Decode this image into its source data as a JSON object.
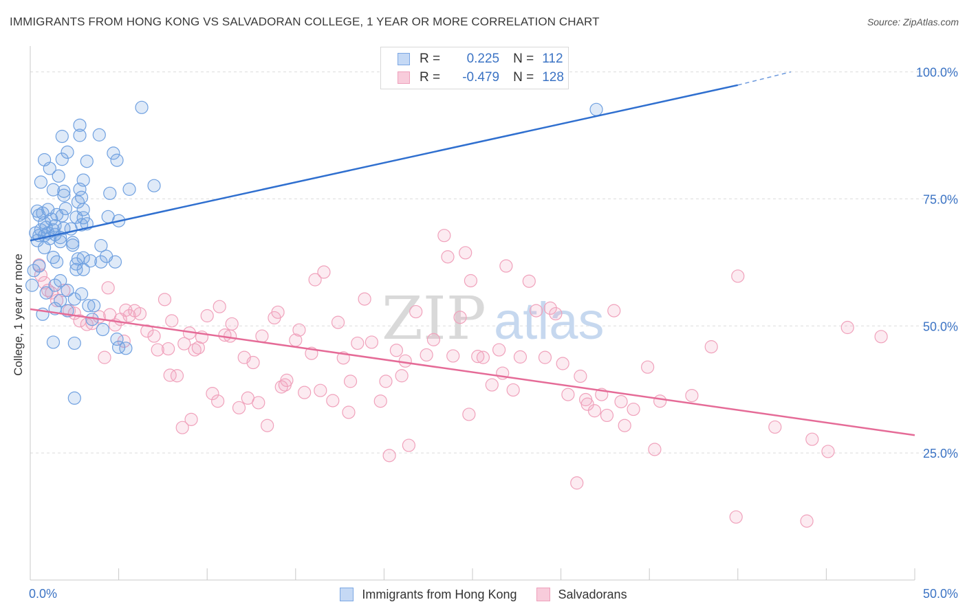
{
  "title": "IMMIGRANTS FROM HONG KONG VS SALVADORAN COLLEGE, 1 YEAR OR MORE CORRELATION CHART",
  "source": "Source: ZipAtlas.com",
  "watermark": {
    "zip": "ZIP",
    "atlas": "atlas"
  },
  "legend": {
    "r_label": "R =",
    "n_label": "N =",
    "rows": [
      {
        "r": "0.225",
        "n": "112"
      },
      {
        "r": "-0.479",
        "n": "128"
      }
    ]
  },
  "chart_data": {
    "type": "scatter",
    "title": "IMMIGRANTS FROM HONG KONG VS SALVADORAN COLLEGE, 1 YEAR OR MORE CORRELATION CHART",
    "xlabel": "",
    "ylabel": "College, 1 year or more",
    "xlim": [
      0,
      50
    ],
    "ylim": [
      0,
      104
    ],
    "x_tick_labels": [
      {
        "value": 0,
        "label": "0.0%"
      },
      {
        "value": 50,
        "label": "50.0%"
      }
    ],
    "x_minor_ticks": [
      0,
      5,
      10,
      15,
      20,
      25,
      30,
      35,
      40,
      45,
      50
    ],
    "y_tick_labels": [
      {
        "value": 25,
        "label": "25.0%"
      },
      {
        "value": 50,
        "label": "50.0%"
      },
      {
        "value": 75,
        "label": "75.0%"
      },
      {
        "value": 100,
        "label": "100.0%"
      }
    ],
    "grid": true,
    "legend_position": "top-center",
    "colors": {
      "blue": "#6fa0e0",
      "blue_line": "#2f6fcf",
      "pink": "#f2a3bd",
      "pink_line": "#e56b97"
    },
    "series": [
      {
        "name": "Immigrants from Hong Kong",
        "color": "blue",
        "r": 0.225,
        "n": 112,
        "trend": {
          "x0": 0,
          "y0": 66.8,
          "x1": 40,
          "y1": 97.4,
          "dash_x1": 43,
          "dash_y1": 100.0
        },
        "points": [
          [
            6.3,
            93.0
          ],
          [
            32.0,
            92.6
          ],
          [
            2.8,
            89.5
          ],
          [
            2.8,
            87.5
          ],
          [
            1.8,
            87.3
          ],
          [
            3.9,
            87.6
          ],
          [
            4.7,
            84.0
          ],
          [
            2.1,
            84.2
          ],
          [
            1.8,
            82.8
          ],
          [
            0.8,
            82.7
          ],
          [
            3.2,
            82.4
          ],
          [
            4.9,
            82.6
          ],
          [
            1.1,
            81.0
          ],
          [
            1.6,
            79.5
          ],
          [
            0.6,
            78.3
          ],
          [
            3.0,
            78.7
          ],
          [
            7.0,
            77.6
          ],
          [
            2.8,
            76.9
          ],
          [
            1.3,
            76.8
          ],
          [
            1.9,
            76.5
          ],
          [
            5.6,
            76.9
          ],
          [
            4.5,
            76.1
          ],
          [
            1.9,
            75.7
          ],
          [
            2.9,
            75.3
          ],
          [
            2.7,
            74.4
          ],
          [
            0.4,
            72.6
          ],
          [
            1.0,
            72.9
          ],
          [
            2.0,
            73.1
          ],
          [
            3.0,
            72.9
          ],
          [
            1.5,
            71.9
          ],
          [
            0.7,
            72.2
          ],
          [
            1.8,
            71.7
          ],
          [
            2.6,
            71.4
          ],
          [
            3.0,
            71.3
          ],
          [
            4.4,
            71.5
          ],
          [
            0.5,
            71.8
          ],
          [
            1.2,
            71.0
          ],
          [
            0.8,
            70.3
          ],
          [
            1.4,
            69.7
          ],
          [
            2.9,
            69.9
          ],
          [
            5.0,
            70.7
          ],
          [
            3.2,
            70.1
          ],
          [
            0.9,
            69.4
          ],
          [
            0.6,
            68.9
          ],
          [
            1.3,
            68.9
          ],
          [
            1.9,
            69.2
          ],
          [
            2.3,
            69.1
          ],
          [
            1.0,
            68.3
          ],
          [
            0.3,
            68.3
          ],
          [
            0.5,
            67.8
          ],
          [
            0.8,
            67.8
          ],
          [
            1.4,
            68.0
          ],
          [
            1.7,
            67.4
          ],
          [
            1.1,
            67.2
          ],
          [
            0.4,
            66.8
          ],
          [
            1.7,
            66.6
          ],
          [
            2.4,
            66.4
          ],
          [
            2.4,
            65.9
          ],
          [
            4.0,
            65.8
          ],
          [
            0.8,
            65.4
          ],
          [
            4.3,
            63.7
          ],
          [
            3.0,
            63.4
          ],
          [
            1.3,
            63.5
          ],
          [
            1.5,
            62.6
          ],
          [
            3.4,
            62.8
          ],
          [
            2.7,
            63.2
          ],
          [
            2.6,
            62.2
          ],
          [
            4.0,
            62.6
          ],
          [
            4.8,
            62.6
          ],
          [
            0.5,
            61.8
          ],
          [
            2.6,
            61.1
          ],
          [
            3.0,
            61.1
          ],
          [
            0.2,
            60.9
          ],
          [
            1.7,
            58.9
          ],
          [
            1.4,
            58.0
          ],
          [
            2.1,
            57.0
          ],
          [
            0.9,
            56.5
          ],
          [
            2.9,
            56.3
          ],
          [
            1.7,
            55.0
          ],
          [
            2.5,
            55.3
          ],
          [
            3.3,
            54.0
          ],
          [
            3.6,
            54.0
          ],
          [
            1.4,
            53.4
          ],
          [
            2.1,
            53.0
          ],
          [
            0.7,
            52.3
          ],
          [
            3.5,
            51.3
          ],
          [
            4.1,
            49.3
          ],
          [
            4.9,
            47.4
          ],
          [
            1.3,
            46.8
          ],
          [
            2.5,
            46.6
          ],
          [
            5.0,
            45.8
          ],
          [
            5.4,
            45.6
          ],
          [
            2.5,
            35.8
          ],
          [
            0.1,
            58.0
          ]
        ]
      },
      {
        "name": "Salvadorans",
        "color": "pink",
        "r": -0.479,
        "n": 128,
        "trend": {
          "x0": 0,
          "y0": 53.3,
          "x1": 50,
          "y1": 28.5
        },
        "points": [
          [
            0.5,
            62.0
          ],
          [
            0.6,
            60.0
          ],
          [
            0.8,
            58.5
          ],
          [
            1.0,
            57.0
          ],
          [
            1.2,
            56.5
          ],
          [
            1.5,
            55.0
          ],
          [
            1.9,
            57.0
          ],
          [
            2.2,
            53.0
          ],
          [
            2.5,
            52.5
          ],
          [
            2.8,
            51.0
          ],
          [
            3.2,
            50.3
          ],
          [
            3.5,
            50.5
          ],
          [
            3.9,
            51.8
          ],
          [
            4.2,
            43.8
          ],
          [
            4.4,
            57.5
          ],
          [
            4.5,
            52.2
          ],
          [
            4.8,
            50.2
          ],
          [
            5.1,
            51.3
          ],
          [
            5.3,
            47.0
          ],
          [
            5.6,
            52.0
          ],
          [
            5.9,
            53.0
          ],
          [
            6.2,
            52.4
          ],
          [
            6.6,
            49.0
          ],
          [
            7.0,
            48.0
          ],
          [
            7.2,
            45.3
          ],
          [
            7.6,
            55.2
          ],
          [
            7.8,
            45.5
          ],
          [
            7.9,
            40.3
          ],
          [
            8.0,
            51.0
          ],
          [
            8.3,
            40.2
          ],
          [
            8.7,
            46.5
          ],
          [
            9.0,
            48.6
          ],
          [
            9.1,
            31.6
          ],
          [
            9.3,
            45.3
          ],
          [
            9.5,
            45.7
          ],
          [
            9.7,
            47.8
          ],
          [
            10.0,
            52.0
          ],
          [
            10.3,
            36.7
          ],
          [
            10.6,
            35.2
          ],
          [
            10.7,
            53.8
          ],
          [
            11.0,
            48.2
          ],
          [
            11.3,
            48.0
          ],
          [
            11.4,
            50.4
          ],
          [
            11.8,
            33.9
          ],
          [
            12.1,
            43.8
          ],
          [
            12.3,
            35.8
          ],
          [
            12.6,
            42.8
          ],
          [
            13.1,
            48.0
          ],
          [
            13.4,
            30.4
          ],
          [
            13.8,
            51.6
          ],
          [
            14.0,
            52.7
          ],
          [
            14.4,
            38.4
          ],
          [
            14.5,
            39.3
          ],
          [
            15.0,
            47.2
          ],
          [
            15.2,
            49.2
          ],
          [
            15.5,
            36.9
          ],
          [
            15.9,
            44.6
          ],
          [
            16.1,
            59.1
          ],
          [
            16.4,
            37.3
          ],
          [
            16.6,
            60.6
          ],
          [
            17.1,
            35.3
          ],
          [
            17.4,
            50.7
          ],
          [
            17.7,
            43.7
          ],
          [
            18.1,
            39.1
          ],
          [
            18.5,
            46.6
          ],
          [
            18.9,
            55.3
          ],
          [
            19.3,
            46.8
          ],
          [
            19.8,
            35.2
          ],
          [
            20.1,
            39.1
          ],
          [
            20.3,
            24.5
          ],
          [
            20.7,
            45.2
          ],
          [
            21.2,
            43.1
          ],
          [
            21.4,
            26.5
          ],
          [
            21.8,
            52.8
          ],
          [
            22.4,
            44.3
          ],
          [
            22.8,
            47.3
          ],
          [
            23.4,
            67.8
          ],
          [
            23.6,
            63.6
          ],
          [
            23.9,
            44.1
          ],
          [
            24.3,
            51.7
          ],
          [
            24.6,
            64.4
          ],
          [
            24.9,
            58.9
          ],
          [
            25.3,
            44.0
          ],
          [
            25.6,
            43.8
          ],
          [
            26.1,
            38.4
          ],
          [
            26.5,
            45.3
          ],
          [
            26.9,
            61.8
          ],
          [
            27.3,
            37.4
          ],
          [
            27.7,
            43.9
          ],
          [
            28.2,
            58.8
          ],
          [
            28.6,
            53.0
          ],
          [
            29.1,
            43.8
          ],
          [
            29.4,
            53.5
          ],
          [
            29.7,
            52.4
          ],
          [
            30.1,
            42.6
          ],
          [
            30.4,
            36.5
          ],
          [
            31.1,
            40.1
          ],
          [
            31.4,
            35.5
          ],
          [
            31.5,
            34.6
          ],
          [
            31.9,
            33.3
          ],
          [
            32.3,
            36.5
          ],
          [
            32.6,
            32.4
          ],
          [
            33.0,
            53.0
          ],
          [
            33.4,
            35.1
          ],
          [
            34.1,
            33.6
          ],
          [
            34.9,
            41.9
          ],
          [
            35.3,
            25.7
          ],
          [
            35.6,
            35.2
          ],
          [
            38.5,
            45.9
          ],
          [
            40.0,
            59.8
          ],
          [
            42.1,
            30.1
          ],
          [
            44.2,
            27.7
          ],
          [
            45.1,
            25.3
          ],
          [
            46.2,
            49.7
          ],
          [
            48.1,
            47.9
          ],
          [
            30.9,
            19.1
          ],
          [
            39.9,
            12.4
          ],
          [
            43.9,
            11.6
          ],
          [
            33.6,
            30.4
          ],
          [
            37.4,
            36.3
          ],
          [
            24.8,
            32.6
          ],
          [
            12.9,
            34.9
          ],
          [
            8.6,
            30.0
          ],
          [
            18.0,
            33.0
          ],
          [
            21.0,
            40.2
          ],
          [
            26.7,
            40.7
          ],
          [
            14.2,
            38.0
          ],
          [
            5.4,
            53.1
          ]
        ]
      }
    ]
  },
  "bottom_legend": [
    {
      "label": "Immigrants from Hong Kong"
    },
    {
      "label": "Salvadorans"
    }
  ]
}
